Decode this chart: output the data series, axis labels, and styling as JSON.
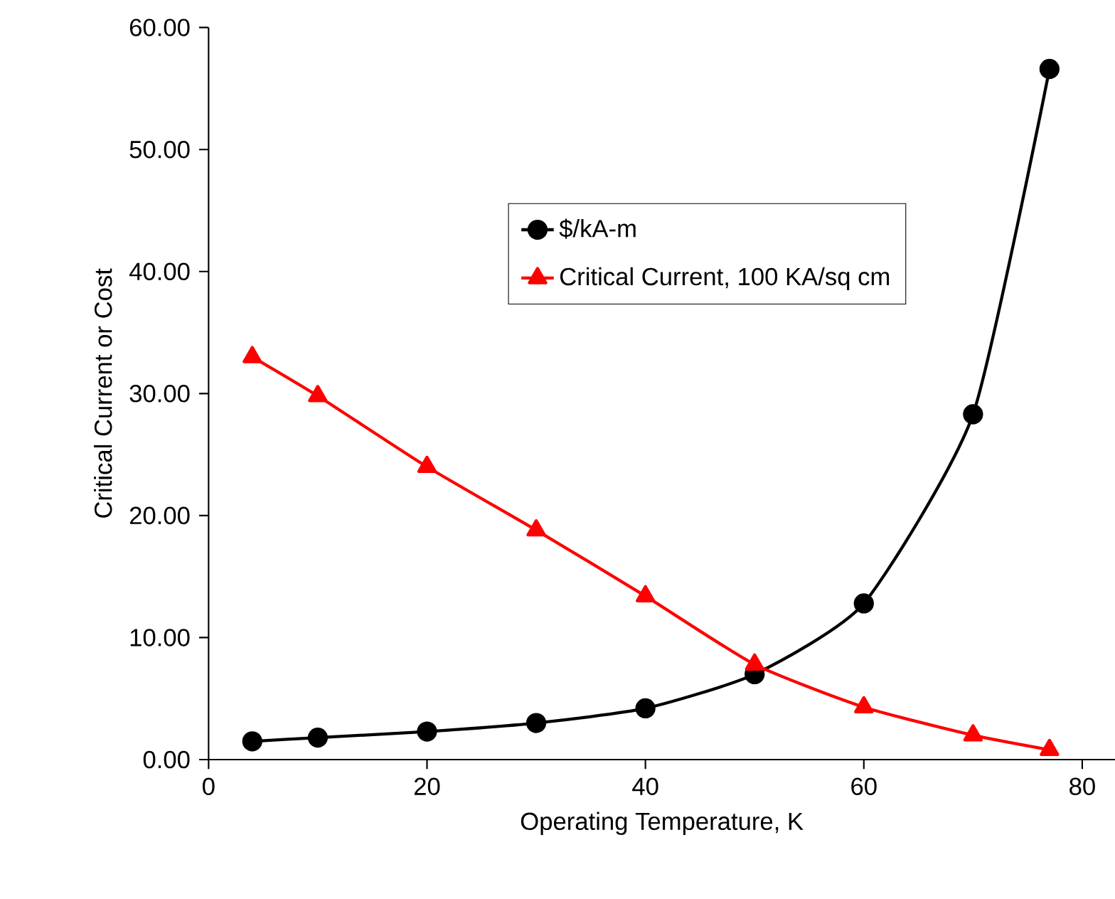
{
  "chart_data": {
    "type": "line",
    "xlabel": "Operating Temperature, K",
    "ylabel": "Critical Current or Cost",
    "x": [
      4,
      10,
      20,
      30,
      40,
      50,
      60,
      70,
      77
    ],
    "series": [
      {
        "name": "$/kA-m",
        "color": "#000000",
        "marker": "circle",
        "values": [
          1.5,
          1.8,
          2.3,
          3.0,
          4.2,
          7.0,
          12.8,
          28.3,
          56.6
        ]
      },
      {
        "name": "Critical Current, 100 KA/sq cm",
        "color": "#ff0000",
        "marker": "triangle",
        "values": [
          33.0,
          29.8,
          24.0,
          18.8,
          13.4,
          7.8,
          4.3,
          2.0,
          0.8
        ]
      }
    ],
    "xlim": [
      0,
      83
    ],
    "xticks": [
      0,
      20,
      40,
      60,
      80
    ],
    "ylim": [
      0,
      60
    ],
    "yticks": [
      {
        "value": 0,
        "label": "0.00"
      },
      {
        "value": 10,
        "label": "10.00"
      },
      {
        "value": 20,
        "label": "20.00"
      },
      {
        "value": 30,
        "label": "30.00"
      },
      {
        "value": 40,
        "label": "40.00"
      },
      {
        "value": 50,
        "label": "50.00"
      },
      {
        "value": 60,
        "label": "60.00"
      }
    ],
    "legend": "top",
    "grid": false,
    "line_style": "solid"
  }
}
